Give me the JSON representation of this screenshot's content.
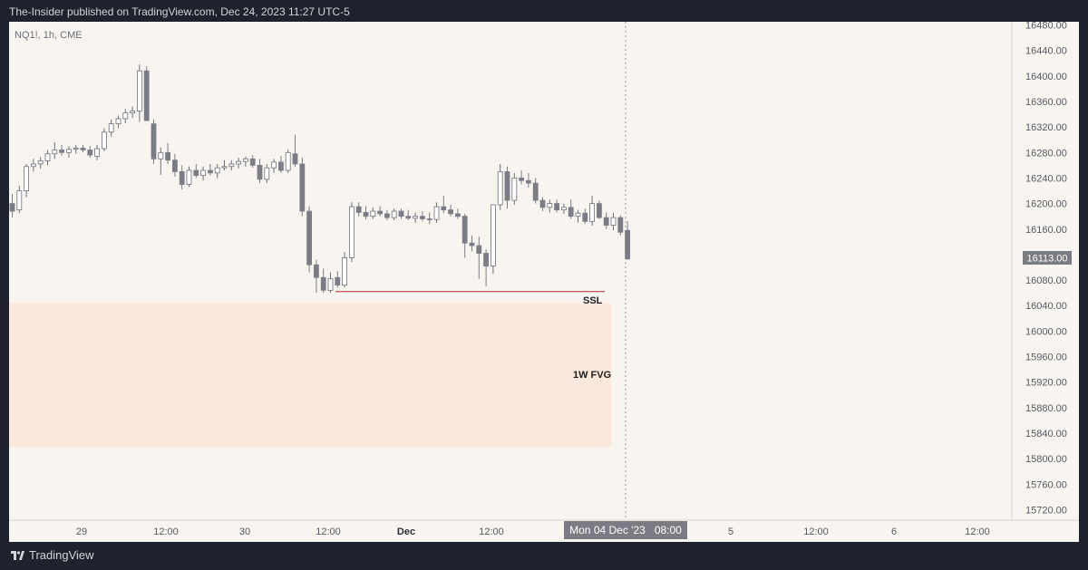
{
  "header": {
    "publish_text": "The-Insider published on TradingView.com, Dec 24, 2023 11:27 UTC-5"
  },
  "footer": {
    "brand": "TradingView"
  },
  "colors": {
    "up_fill": "#ffffff",
    "up_border": "#6f6f7a",
    "down": "#7c7c86",
    "ssl_line": "#b5292f",
    "fvg_zone": "#fbe8dd",
    "price_label_bg": "#7b7b84"
  },
  "chart_data": {
    "type": "candlestick",
    "symbol_label": "NQ1!, 1h, CME",
    "ylim": [
      15700,
      16500
    ],
    "y_ticks": [
      "16480.00",
      "16440.00",
      "16400.00",
      "16360.00",
      "16320.00",
      "16280.00",
      "16240.00",
      "16200.00",
      "16160.00",
      "16080.00",
      "16040.00",
      "16000.00",
      "15960.00",
      "15920.00",
      "15880.00",
      "15840.00",
      "15800.00",
      "15760.00",
      "15720.00"
    ],
    "x_ticks": [
      "29",
      "12:00",
      "30",
      "12:00",
      "Dec",
      "12:00",
      "5",
      "12:00",
      "6",
      "12:00"
    ],
    "crosshair_label": "Mon 04 Dec '23   08:00",
    "last_price": "16113.00",
    "annotations": {
      "ssl": {
        "label": "SSL",
        "price": 16062
      },
      "fvg": {
        "label": "1W FVG",
        "top": 16044,
        "bottom": 15818
      }
    },
    "candles": [
      {
        "o": 16200,
        "h": 16215,
        "l": 16178,
        "c": 16188
      },
      {
        "o": 16190,
        "h": 16228,
        "l": 16185,
        "c": 16220
      },
      {
        "o": 16220,
        "h": 16262,
        "l": 16210,
        "c": 16258
      },
      {
        "o": 16258,
        "h": 16270,
        "l": 16250,
        "c": 16262
      },
      {
        "o": 16262,
        "h": 16273,
        "l": 16255,
        "c": 16267
      },
      {
        "o": 16267,
        "h": 16284,
        "l": 16260,
        "c": 16278
      },
      {
        "o": 16278,
        "h": 16296,
        "l": 16270,
        "c": 16284
      },
      {
        "o": 16284,
        "h": 16292,
        "l": 16275,
        "c": 16280
      },
      {
        "o": 16280,
        "h": 16290,
        "l": 16272,
        "c": 16285
      },
      {
        "o": 16285,
        "h": 16292,
        "l": 16278,
        "c": 16287
      },
      {
        "o": 16287,
        "h": 16292,
        "l": 16280,
        "c": 16284
      },
      {
        "o": 16284,
        "h": 16290,
        "l": 16272,
        "c": 16276
      },
      {
        "o": 16274,
        "h": 16292,
        "l": 16268,
        "c": 16286
      },
      {
        "o": 16286,
        "h": 16318,
        "l": 16282,
        "c": 16312
      },
      {
        "o": 16312,
        "h": 16332,
        "l": 16305,
        "c": 16325
      },
      {
        "o": 16325,
        "h": 16338,
        "l": 16318,
        "c": 16333
      },
      {
        "o": 16333,
        "h": 16348,
        "l": 16326,
        "c": 16342
      },
      {
        "o": 16342,
        "h": 16352,
        "l": 16334,
        "c": 16345
      },
      {
        "o": 16345,
        "h": 16418,
        "l": 16328,
        "c": 16408
      },
      {
        "o": 16408,
        "h": 16415,
        "l": 16330,
        "c": 16330
      },
      {
        "o": 16325,
        "h": 16332,
        "l": 16262,
        "c": 16270
      },
      {
        "o": 16270,
        "h": 16288,
        "l": 16245,
        "c": 16280
      },
      {
        "o": 16280,
        "h": 16295,
        "l": 16262,
        "c": 16268
      },
      {
        "o": 16268,
        "h": 16278,
        "l": 16242,
        "c": 16250
      },
      {
        "o": 16250,
        "h": 16260,
        "l": 16222,
        "c": 16230
      },
      {
        "o": 16230,
        "h": 16258,
        "l": 16226,
        "c": 16252
      },
      {
        "o": 16252,
        "h": 16262,
        "l": 16240,
        "c": 16244
      },
      {
        "o": 16244,
        "h": 16258,
        "l": 16236,
        "c": 16252
      },
      {
        "o": 16252,
        "h": 16262,
        "l": 16244,
        "c": 16248
      },
      {
        "o": 16248,
        "h": 16262,
        "l": 16240,
        "c": 16256
      },
      {
        "o": 16256,
        "h": 16268,
        "l": 16252,
        "c": 16258
      },
      {
        "o": 16258,
        "h": 16268,
        "l": 16252,
        "c": 16262
      },
      {
        "o": 16262,
        "h": 16272,
        "l": 16255,
        "c": 16266
      },
      {
        "o": 16266,
        "h": 16274,
        "l": 16258,
        "c": 16270
      },
      {
        "o": 16270,
        "h": 16276,
        "l": 16256,
        "c": 16260
      },
      {
        "o": 16260,
        "h": 16270,
        "l": 16232,
        "c": 16238
      },
      {
        "o": 16238,
        "h": 16262,
        "l": 16232,
        "c": 16256
      },
      {
        "o": 16256,
        "h": 16270,
        "l": 16248,
        "c": 16265
      },
      {
        "o": 16265,
        "h": 16275,
        "l": 16248,
        "c": 16252
      },
      {
        "o": 16252,
        "h": 16285,
        "l": 16248,
        "c": 16280
      },
      {
        "o": 16278,
        "h": 16308,
        "l": 16258,
        "c": 16262
      },
      {
        "o": 16262,
        "h": 16272,
        "l": 16180,
        "c": 16188
      },
      {
        "o": 16188,
        "h": 16196,
        "l": 16092,
        "c": 16104
      },
      {
        "o": 16104,
        "h": 16112,
        "l": 16060,
        "c": 16084
      },
      {
        "o": 16084,
        "h": 16098,
        "l": 16060,
        "c": 16064
      },
      {
        "o": 16064,
        "h": 16092,
        "l": 16060,
        "c": 16082
      },
      {
        "o": 16084,
        "h": 16094,
        "l": 16068,
        "c": 16072
      },
      {
        "o": 16072,
        "h": 16124,
        "l": 16068,
        "c": 16115
      },
      {
        "o": 16115,
        "h": 16202,
        "l": 16108,
        "c": 16195
      },
      {
        "o": 16195,
        "h": 16202,
        "l": 16180,
        "c": 16186
      },
      {
        "o": 16186,
        "h": 16196,
        "l": 16175,
        "c": 16180
      },
      {
        "o": 16180,
        "h": 16194,
        "l": 16176,
        "c": 16188
      },
      {
        "o": 16188,
        "h": 16196,
        "l": 16180,
        "c": 16184
      },
      {
        "o": 16184,
        "h": 16190,
        "l": 16174,
        "c": 16178
      },
      {
        "o": 16178,
        "h": 16192,
        "l": 16174,
        "c": 16188
      },
      {
        "o": 16188,
        "h": 16192,
        "l": 16176,
        "c": 16180
      },
      {
        "o": 16180,
        "h": 16190,
        "l": 16174,
        "c": 16177
      },
      {
        "o": 16177,
        "h": 16186,
        "l": 16170,
        "c": 16180
      },
      {
        "o": 16180,
        "h": 16188,
        "l": 16172,
        "c": 16176
      },
      {
        "o": 16176,
        "h": 16186,
        "l": 16168,
        "c": 16175
      },
      {
        "o": 16175,
        "h": 16202,
        "l": 16170,
        "c": 16195
      },
      {
        "o": 16195,
        "h": 16212,
        "l": 16185,
        "c": 16190
      },
      {
        "o": 16190,
        "h": 16198,
        "l": 16180,
        "c": 16184
      },
      {
        "o": 16184,
        "h": 16192,
        "l": 16176,
        "c": 16180
      },
      {
        "o": 16180,
        "h": 16184,
        "l": 16115,
        "c": 16138
      },
      {
        "o": 16138,
        "h": 16150,
        "l": 16125,
        "c": 16134
      },
      {
        "o": 16134,
        "h": 16148,
        "l": 16082,
        "c": 16122
      },
      {
        "o": 16122,
        "h": 16128,
        "l": 16070,
        "c": 16102
      },
      {
        "o": 16102,
        "h": 16195,
        "l": 16090,
        "c": 16198
      },
      {
        "o": 16198,
        "h": 16262,
        "l": 16190,
        "c": 16250
      },
      {
        "o": 16250,
        "h": 16258,
        "l": 16192,
        "c": 16205
      },
      {
        "o": 16205,
        "h": 16248,
        "l": 16198,
        "c": 16240
      },
      {
        "o": 16240,
        "h": 16252,
        "l": 16230,
        "c": 16236
      },
      {
        "o": 16236,
        "h": 16248,
        "l": 16225,
        "c": 16232
      },
      {
        "o": 16232,
        "h": 16240,
        "l": 16200,
        "c": 16205
      },
      {
        "o": 16205,
        "h": 16210,
        "l": 16188,
        "c": 16194
      },
      {
        "o": 16194,
        "h": 16206,
        "l": 16186,
        "c": 16200
      },
      {
        "o": 16200,
        "h": 16206,
        "l": 16186,
        "c": 16190
      },
      {
        "o": 16190,
        "h": 16200,
        "l": 16184,
        "c": 16194
      },
      {
        "o": 16194,
        "h": 16206,
        "l": 16176,
        "c": 16180
      },
      {
        "o": 16180,
        "h": 16190,
        "l": 16170,
        "c": 16185
      },
      {
        "o": 16185,
        "h": 16192,
        "l": 16168,
        "c": 16172
      },
      {
        "o": 16172,
        "h": 16212,
        "l": 16165,
        "c": 16200
      },
      {
        "o": 16200,
        "h": 16205,
        "l": 16176,
        "c": 16178
      },
      {
        "o": 16178,
        "h": 16186,
        "l": 16160,
        "c": 16166
      },
      {
        "o": 16166,
        "h": 16185,
        "l": 16158,
        "c": 16178
      },
      {
        "o": 16178,
        "h": 16182,
        "l": 16150,
        "c": 16155
      },
      {
        "o": 16158,
        "h": 16172,
        "l": 16112,
        "c": 16113
      }
    ]
  }
}
